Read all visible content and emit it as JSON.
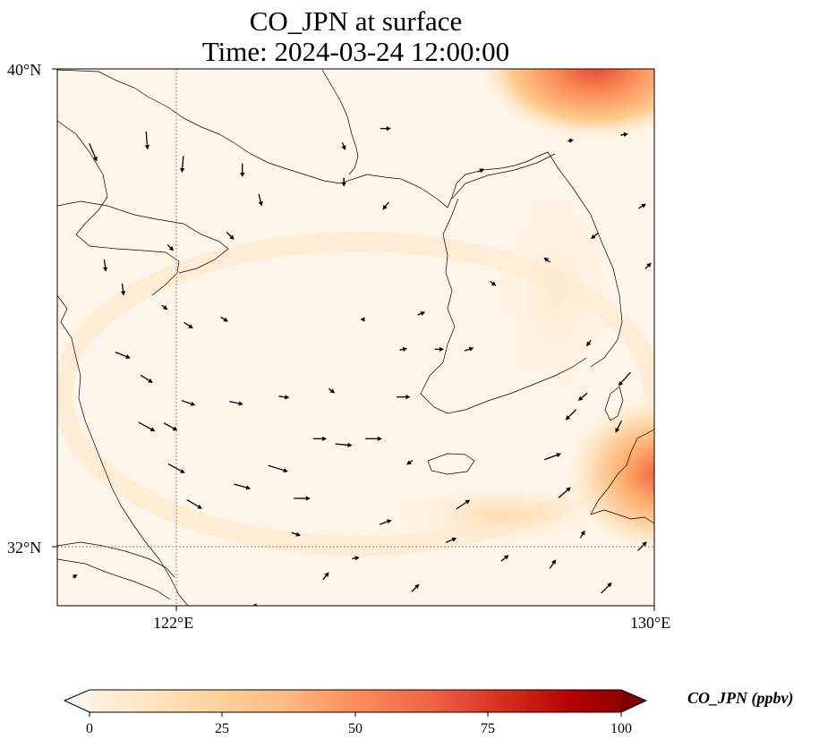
{
  "title": {
    "line1": "CO_JPN at surface",
    "line2": "Time: 2024-03-24 12:00:00"
  },
  "map": {
    "extent": {
      "lon_min": 120,
      "lon_max": 130,
      "lat_min": 31,
      "lat_max": 40
    },
    "gridlines": {
      "lons": [
        122
      ],
      "lats": [
        32
      ],
      "style": "dotted"
    },
    "lat_ticks": [
      "40°N",
      "32°N"
    ],
    "lon_ticks": [
      "122°E",
      "130°E"
    ]
  },
  "colorbar": {
    "label": "CO_JPN (ppbv)",
    "ticks": [
      "0",
      "25",
      "50",
      "75",
      "100"
    ],
    "range": [
      0,
      100
    ],
    "extend": "both",
    "colormap": "OrRd",
    "colors": [
      "#fff7ec",
      "#fee8c8",
      "#fdd49e",
      "#fdbb84",
      "#fc8d59",
      "#ef6548",
      "#d7301f",
      "#b30000",
      "#7f0000"
    ]
  },
  "field_hotspots": [
    {
      "region": "northeast corner",
      "lon": 129.5,
      "lat": 40.0,
      "value": 65
    },
    {
      "region": "Kyushu east edge",
      "lon": 130.0,
      "lat": 33.3,
      "value": 55
    },
    {
      "region": "Korea Strait band",
      "lon": 128.0,
      "lat": 32.5,
      "value": 12
    }
  ],
  "wind_vectors": [
    {
      "lon": 121.5,
      "lat": 38.8,
      "u": 0.1,
      "v": -1.2
    },
    {
      "lon": 120.6,
      "lat": 38.6,
      "u": 0.5,
      "v": -1.2
    },
    {
      "lon": 122.1,
      "lat": 38.4,
      "u": -0.1,
      "v": -1.1
    },
    {
      "lon": 123.1,
      "lat": 38.3,
      "u": 0.0,
      "v": -0.9
    },
    {
      "lon": 123.4,
      "lat": 37.8,
      "u": 0.2,
      "v": -0.8
    },
    {
      "lon": 122.9,
      "lat": 37.2,
      "u": 0.5,
      "v": -0.5
    },
    {
      "lon": 121.9,
      "lat": 37.0,
      "u": 0.4,
      "v": -0.4
    },
    {
      "lon": 120.8,
      "lat": 36.7,
      "u": 0.1,
      "v": -0.8
    },
    {
      "lon": 121.1,
      "lat": 36.3,
      "u": 0.1,
      "v": -0.8
    },
    {
      "lon": 122.2,
      "lat": 35.7,
      "u": 0.6,
      "v": -0.4
    },
    {
      "lon": 122.8,
      "lat": 35.8,
      "u": 0.5,
      "v": -0.3
    },
    {
      "lon": 121.1,
      "lat": 35.2,
      "u": 1.0,
      "v": -0.4
    },
    {
      "lon": 121.5,
      "lat": 34.8,
      "u": 0.8,
      "v": -0.5
    },
    {
      "lon": 122.2,
      "lat": 34.4,
      "u": 0.9,
      "v": -0.3
    },
    {
      "lon": 123.0,
      "lat": 34.4,
      "u": 0.9,
      "v": -0.2
    },
    {
      "lon": 123.8,
      "lat": 34.5,
      "u": 0.7,
      "v": -0.1
    },
    {
      "lon": 121.5,
      "lat": 34.0,
      "u": 1.1,
      "v": -0.6
    },
    {
      "lon": 121.9,
      "lat": 34.0,
      "u": 0.9,
      "v": -0.5
    },
    {
      "lon": 122.0,
      "lat": 33.3,
      "u": 1.1,
      "v": -0.6
    },
    {
      "lon": 122.3,
      "lat": 32.7,
      "u": 1.0,
      "v": -0.6
    },
    {
      "lon": 123.1,
      "lat": 33.0,
      "u": 1.1,
      "v": -0.3
    },
    {
      "lon": 123.7,
      "lat": 33.3,
      "u": 1.3,
      "v": -0.4
    },
    {
      "lon": 124.1,
      "lat": 32.8,
      "u": 1.1,
      "v": 0.0
    },
    {
      "lon": 124.4,
      "lat": 33.8,
      "u": 0.9,
      "v": 0.0
    },
    {
      "lon": 124.8,
      "lat": 33.7,
      "u": 1.1,
      "v": -0.1
    },
    {
      "lon": 125.3,
      "lat": 33.8,
      "u": 1.1,
      "v": 0.0
    },
    {
      "lon": 124.6,
      "lat": 34.6,
      "u": 0.4,
      "v": -0.3
    },
    {
      "lon": 125.8,
      "lat": 34.5,
      "u": 0.9,
      "v": 0.0
    },
    {
      "lon": 126.1,
      "lat": 35.9,
      "u": 0.5,
      "v": 0.2
    },
    {
      "lon": 126.4,
      "lat": 35.3,
      "u": 0.6,
      "v": 0.0
    },
    {
      "lon": 126.9,
      "lat": 35.3,
      "u": 0.6,
      "v": 0.2
    },
    {
      "lon": 127.3,
      "lat": 36.4,
      "u": 0.4,
      "v": -0.3
    },
    {
      "lon": 128.2,
      "lat": 36.8,
      "u": -0.4,
      "v": 0.3
    },
    {
      "lon": 129.0,
      "lat": 37.2,
      "u": -0.5,
      "v": -0.4
    },
    {
      "lon": 129.9,
      "lat": 36.7,
      "u": 0.4,
      "v": 0.4
    },
    {
      "lon": 128.8,
      "lat": 34.5,
      "u": -0.6,
      "v": -0.5
    },
    {
      "lon": 128.6,
      "lat": 34.2,
      "u": -0.7,
      "v": -0.7
    },
    {
      "lon": 129.4,
      "lat": 34.0,
      "u": -0.4,
      "v": -0.8
    },
    {
      "lon": 128.3,
      "lat": 33.5,
      "u": 1.1,
      "v": 0.4
    },
    {
      "lon": 126.8,
      "lat": 32.7,
      "u": 0.9,
      "v": 0.6
    },
    {
      "lon": 128.5,
      "lat": 32.9,
      "u": 0.8,
      "v": 0.7
    },
    {
      "lon": 128.8,
      "lat": 32.2,
      "u": 0.3,
      "v": 0.5
    },
    {
      "lon": 128.3,
      "lat": 31.7,
      "u": 0.4,
      "v": 0.6
    },
    {
      "lon": 127.5,
      "lat": 31.8,
      "u": 0.5,
      "v": 0.4
    },
    {
      "lon": 126.6,
      "lat": 32.1,
      "u": 0.7,
      "v": 0.3
    },
    {
      "lon": 125.5,
      "lat": 32.4,
      "u": 0.8,
      "v": 0.3
    },
    {
      "lon": 125.0,
      "lat": 31.8,
      "u": 0.5,
      "v": 0.1
    },
    {
      "lon": 126.0,
      "lat": 31.3,
      "u": 0.5,
      "v": 0.5
    },
    {
      "lon": 129.2,
      "lat": 31.3,
      "u": 0.7,
      "v": 0.7
    },
    {
      "lon": 129.8,
      "lat": 32.0,
      "u": 0.6,
      "v": 0.6
    },
    {
      "lon": 123.3,
      "lat": 31.0,
      "u": -0.3,
      "v": 0.0
    },
    {
      "lon": 120.3,
      "lat": 31.5,
      "u": 0.3,
      "v": 0.2
    },
    {
      "lon": 124.0,
      "lat": 32.2,
      "u": 0.6,
      "v": -0.2
    },
    {
      "lon": 124.5,
      "lat": 31.5,
      "u": 0.4,
      "v": 0.5
    },
    {
      "lon": 121.8,
      "lat": 36.0,
      "u": 0.4,
      "v": -0.3
    },
    {
      "lon": 124.8,
      "lat": 38.7,
      "u": 0.2,
      "v": -0.5
    },
    {
      "lon": 125.5,
      "lat": 39.0,
      "u": 0.7,
      "v": 0.0
    },
    {
      "lon": 127.1,
      "lat": 38.3,
      "u": 0.4,
      "v": 0.2
    },
    {
      "lon": 128.6,
      "lat": 38.8,
      "u": 0.4,
      "v": 0.1
    },
    {
      "lon": 129.5,
      "lat": 38.9,
      "u": 0.5,
      "v": 0.1
    },
    {
      "lon": 125.5,
      "lat": 37.7,
      "u": -0.4,
      "v": -0.5
    },
    {
      "lon": 124.8,
      "lat": 38.1,
      "u": 0.0,
      "v": -0.6
    },
    {
      "lon": 125.1,
      "lat": 35.8,
      "u": -0.2,
      "v": 0.0
    },
    {
      "lon": 125.8,
      "lat": 35.3,
      "u": 0.5,
      "v": 0.1
    },
    {
      "lon": 128.9,
      "lat": 35.4,
      "u": -0.3,
      "v": -0.4
    },
    {
      "lon": 129.5,
      "lat": 34.8,
      "u": -0.8,
      "v": -0.9
    },
    {
      "lon": 125.9,
      "lat": 33.4,
      "u": -0.4,
      "v": -0.3
    },
    {
      "lon": 129.8,
      "lat": 37.7,
      "u": 0.5,
      "v": 0.3
    }
  ]
}
